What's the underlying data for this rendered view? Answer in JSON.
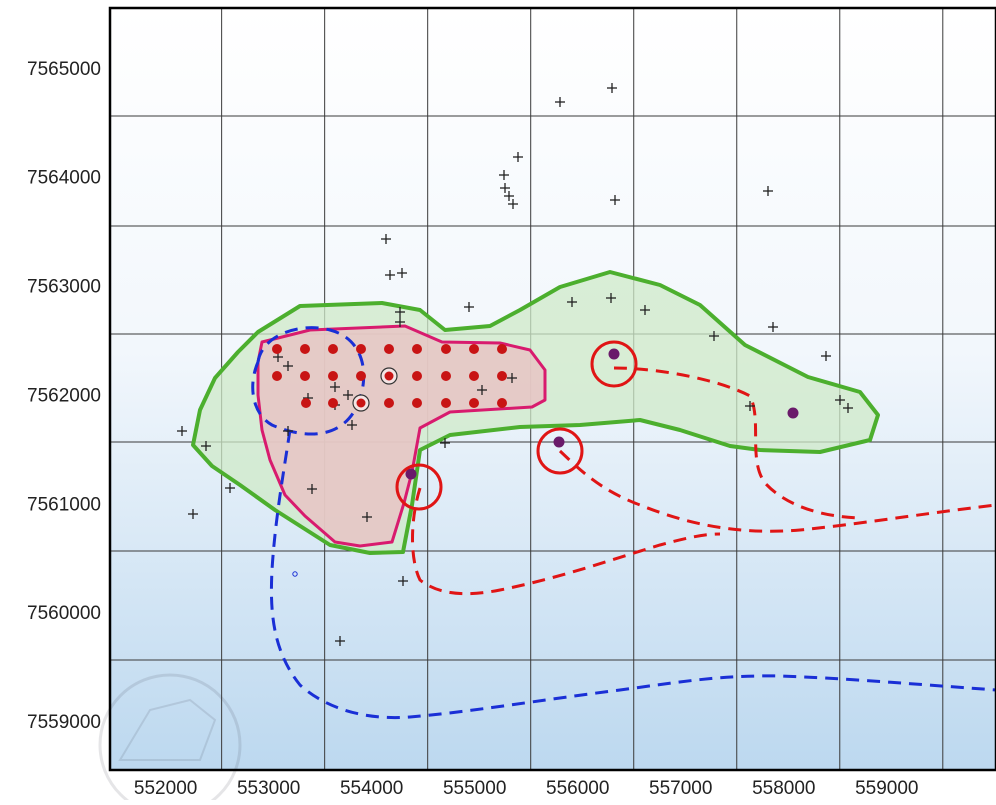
{
  "map": {
    "x_axis": {
      "ticks": [
        552000,
        553000,
        554000,
        555000,
        556000,
        557000,
        558000,
        559000
      ],
      "labels": [
        "552000",
        "553000",
        "554000",
        "555000",
        "556000",
        "557000",
        "558000",
        "559000"
      ],
      "range": [
        551460,
        560060
      ]
    },
    "y_axis": {
      "ticks": [
        7565000,
        7564000,
        7563000,
        7562000,
        7561000,
        7560000,
        7559000
      ],
      "labels": [
        "7565000",
        "7564000",
        "7563000",
        "7562000",
        "7561000",
        "7560000",
        "7559000"
      ],
      "range": [
        7558550,
        7565550
      ]
    },
    "colors": {
      "grid": "#3a3a3a",
      "outer_zone_stroke": "#4caf2e",
      "outer_zone_fill": "#cfe9c8",
      "inner_zone_stroke": "#d81b6e",
      "inner_zone_fill": "#e8c4c4",
      "red_dot": "#c81414",
      "purple_dot": "#6a1a6a",
      "red_circle": "#e01515",
      "red_dashed": "#e01515",
      "blue_dashed": "#1a2fd6",
      "cross": "#222222",
      "background_top": "#ffffff",
      "background_bottom": "#bcd8ef"
    },
    "icons": {
      "cross": "plus-marker-icon",
      "red_dot": "sample-point-icon",
      "purple_dot": "target-point-icon",
      "ring": "highlight-circle-icon"
    }
  }
}
